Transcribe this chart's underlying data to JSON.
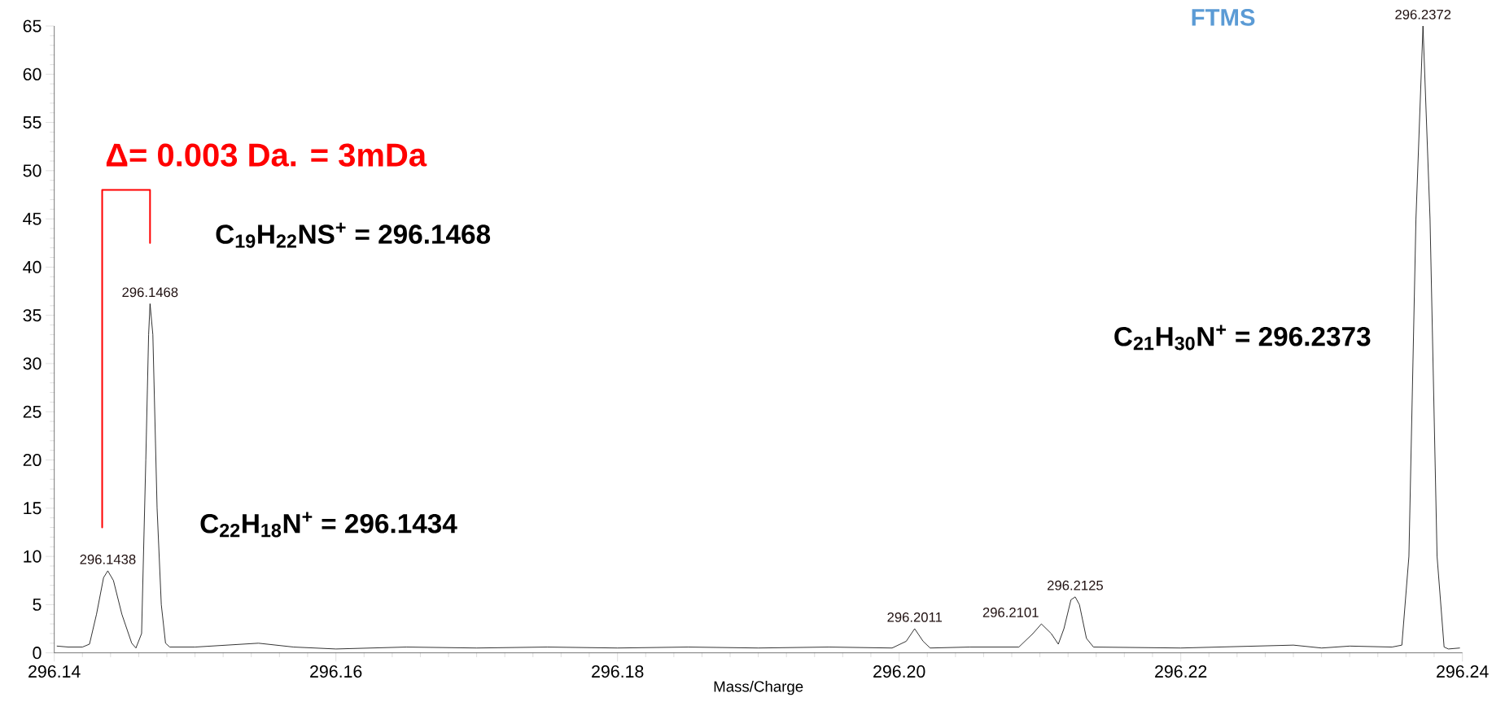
{
  "chart_data": {
    "type": "line",
    "xlabel": "Mass/Charge",
    "xlim": [
      296.14,
      296.24
    ],
    "ylim": [
      0,
      65
    ],
    "xticks": [
      {
        "value": 296.14,
        "label": "296.14"
      },
      {
        "value": 296.16,
        "label": "296.16"
      },
      {
        "value": 296.18,
        "label": "296.18"
      },
      {
        "value": 296.2,
        "label": "296.20"
      },
      {
        "value": 296.22,
        "label": "296.22"
      },
      {
        "value": 296.24,
        "label": "296.24"
      }
    ],
    "yticks": [
      0,
      5,
      10,
      15,
      20,
      25,
      30,
      35,
      40,
      45,
      50,
      55,
      60,
      65
    ],
    "grid": false,
    "marker": "none",
    "line_style": "solid",
    "series": [
      {
        "color": "#000000",
        "x": [
          296.1402,
          296.141,
          296.142,
          296.1425,
          296.143,
          296.1435,
          296.1438,
          296.1442,
          296.1448,
          296.1455,
          296.1458,
          296.1462,
          296.1465,
          296.1467,
          296.1468,
          296.147,
          296.1473,
          296.1476,
          296.1479,
          296.1482,
          296.15,
          296.1545,
          296.157,
          296.16,
          296.165,
          296.17,
          296.175,
          296.18,
          296.185,
          296.19,
          296.195,
          296.1995,
          296.2005,
          296.2011,
          296.2017,
          296.2022,
          296.205,
          296.2085,
          296.2095,
          296.2101,
          296.2108,
          296.2113,
          296.2117,
          296.2122,
          296.2125,
          296.2128,
          296.2133,
          296.2138,
          296.22,
          296.228,
          296.23,
          296.232,
          296.235,
          296.2357,
          296.2362,
          296.2367,
          296.2372,
          296.2377,
          296.2382,
          296.2387,
          296.239,
          296.2398
        ],
        "values": [
          0.7,
          0.6,
          0.6,
          0.9,
          4,
          7.8,
          8.5,
          7.5,
          4,
          1,
          0.5,
          2,
          20,
          33,
          36.2,
          33,
          15,
          5,
          1,
          0.6,
          0.6,
          1,
          0.6,
          0.4,
          0.6,
          0.5,
          0.6,
          0.5,
          0.6,
          0.5,
          0.6,
          0.5,
          1.2,
          2.5,
          1.2,
          0.5,
          0.6,
          0.6,
          2,
          3,
          2,
          0.9,
          2.5,
          5.5,
          5.8,
          5,
          1.5,
          0.6,
          0.5,
          0.8,
          0.5,
          0.7,
          0.6,
          0.8,
          10,
          45,
          65,
          45,
          10,
          0.6,
          0.4,
          0.5
        ]
      }
    ],
    "annotations": [
      "Δ= 0.003 Da. = 3mDa",
      "C$_{19}$H$_{22}$NS$^{+}$ = 296.1468",
      "C$_{22}$H$_{18}$N$^{+}$ = 296.1434",
      "C$_{21}$H$_{30}$N$^{+}$ = 296.2373",
      "FTMS",
      {
        "text": "296.1438",
        "x": 296.1438,
        "y": 8.5
      },
      {
        "text": "296.1468",
        "x": 296.1468,
        "y": 36.2
      },
      {
        "text": "296.2011",
        "x": 296.2011,
        "y": 2.5
      },
      {
        "text": "296.2101",
        "x": 296.2101,
        "y": 3
      },
      {
        "text": "296.2125",
        "x": 296.2125,
        "y": 5.8
      },
      {
        "text": "296.2372",
        "x": 296.2372,
        "y": 65
      }
    ]
  }
}
